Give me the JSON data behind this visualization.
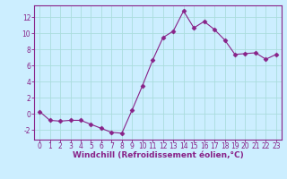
{
  "x": [
    0,
    1,
    2,
    3,
    4,
    5,
    6,
    7,
    8,
    9,
    10,
    11,
    12,
    13,
    14,
    15,
    16,
    17,
    18,
    19,
    20,
    21,
    22,
    23
  ],
  "y": [
    0.3,
    -0.8,
    -0.9,
    -0.8,
    -0.8,
    -1.3,
    -1.8,
    -2.3,
    -2.4,
    0.5,
    3.5,
    6.7,
    9.5,
    10.3,
    12.8,
    10.7,
    11.5,
    10.5,
    9.2,
    7.4,
    7.5,
    7.6,
    6.8,
    7.4
  ],
  "line_color": "#882288",
  "marker": "D",
  "marker_size": 2.5,
  "bg_color": "#cceeff",
  "grid_color": "#aadddd",
  "xlabel": "Windchill (Refroidissement éolien,°C)",
  "xlim": [
    -0.5,
    23.5
  ],
  "ylim": [
    -3.2,
    13.5
  ],
  "xticks": [
    0,
    1,
    2,
    3,
    4,
    5,
    6,
    7,
    8,
    9,
    10,
    11,
    12,
    13,
    14,
    15,
    16,
    17,
    18,
    19,
    20,
    21,
    22,
    23
  ],
  "yticks": [
    -2,
    0,
    2,
    4,
    6,
    8,
    10,
    12
  ],
  "tick_color": "#882288",
  "label_color": "#882288",
  "spine_color": "#882288",
  "xlabel_fontsize": 6.5,
  "tick_fontsize": 5.5
}
